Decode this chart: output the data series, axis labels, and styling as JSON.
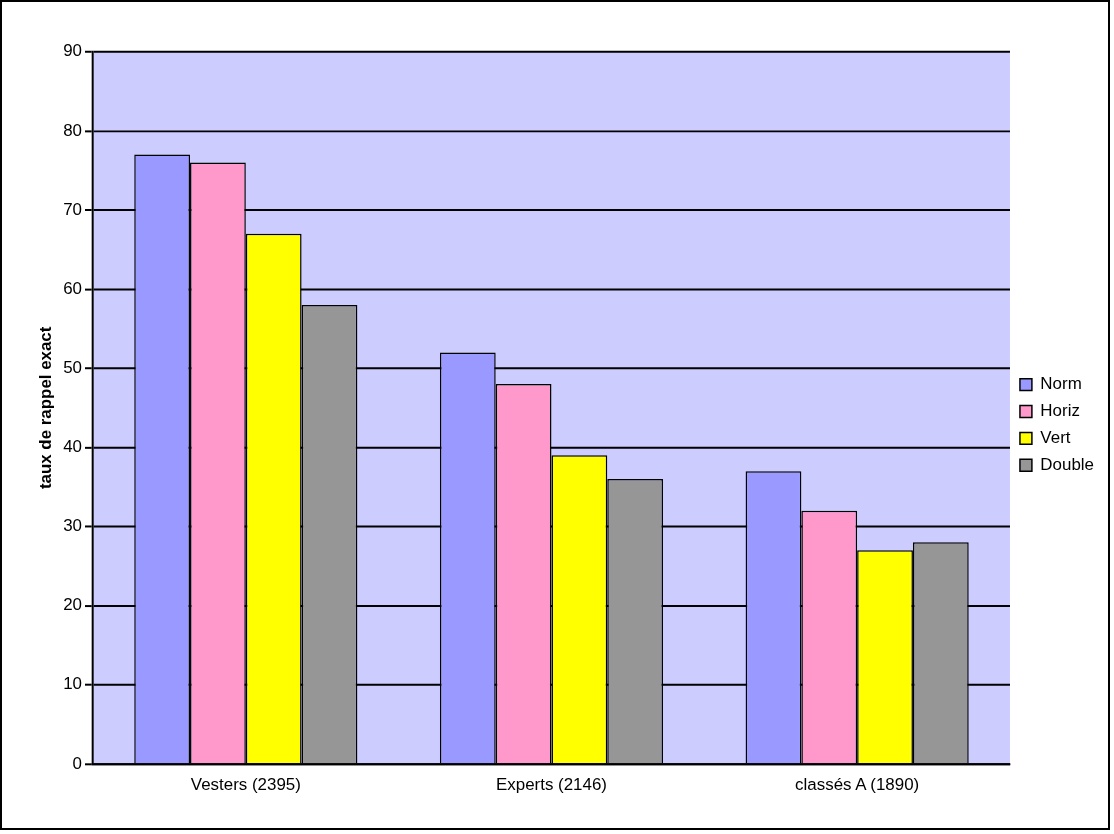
{
  "chart_data": {
    "type": "bar",
    "ylabel": "taux de rappel exact",
    "categories": [
      "Vesters (2395)",
      "Experts (2146)",
      "classés A (1890)"
    ],
    "series": [
      {
        "name": "Norm",
        "color": "#9999ff",
        "values": [
          77,
          52,
          37
        ]
      },
      {
        "name": "Horiz",
        "color": "#ff99cc",
        "values": [
          76,
          48,
          32
        ]
      },
      {
        "name": "Vert",
        "color": "#ffff00",
        "values": [
          67,
          39,
          27
        ]
      },
      {
        "name": "Double",
        "color": "#969696",
        "values": [
          58,
          36,
          28
        ]
      }
    ],
    "ylim": [
      0,
      90
    ],
    "yticks": [
      0,
      10,
      20,
      30,
      40,
      50,
      60,
      70,
      80,
      90
    ],
    "grid": "y",
    "legend": "right"
  }
}
